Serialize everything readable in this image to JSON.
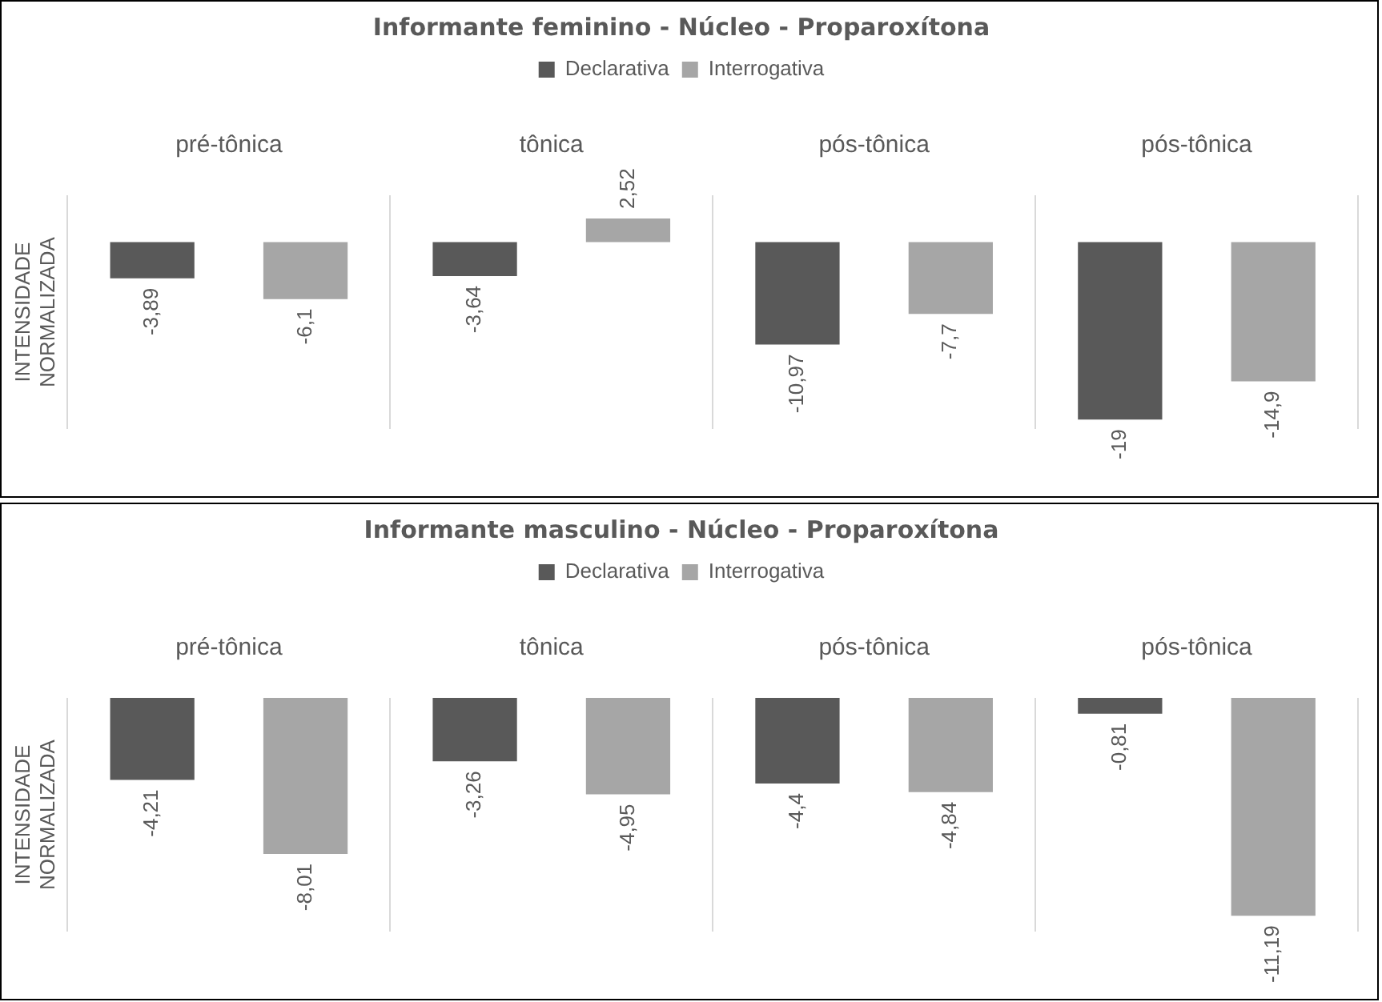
{
  "chart_data": [
    {
      "type": "bar",
      "title": "Informante feminino - Núcleo - Proparoxítona",
      "ylabel": "INTENSIDADE NORMALIZADA",
      "categories": [
        "pré-tônica",
        "tônica",
        "pós-tônica",
        "pós-tônica"
      ],
      "series": [
        {
          "name": "Declarativa",
          "color": "#595959",
          "values": [
            -3.89,
            -3.64,
            -10.97,
            -19
          ],
          "value_labels": [
            "-3,89",
            "-3,64",
            "-10,97",
            "-19"
          ]
        },
        {
          "name": "Interrogativa",
          "color": "#a6a6a6",
          "values": [
            -6.1,
            2.52,
            -7.7,
            -14.9
          ],
          "value_labels": [
            "-6,1",
            "2,52",
            "-7,7",
            "-14,9"
          ]
        }
      ],
      "legend": "top",
      "grid": "x",
      "tick_labels": "x"
    },
    {
      "type": "bar",
      "title": "Informante masculino - Núcleo - Proparoxítona",
      "ylabel": "INTENSIDADE NORMALIZADA",
      "categories": [
        "pré-tônica",
        "tônica",
        "pós-tônica",
        "pós-tônica"
      ],
      "series": [
        {
          "name": "Declarativa",
          "color": "#595959",
          "values": [
            -4.21,
            -3.26,
            -4.4,
            -0.81
          ],
          "value_labels": [
            "-4,21",
            "-3,26",
            "-4,4",
            "-0,81"
          ]
        },
        {
          "name": "Interrogativa",
          "color": "#a6a6a6",
          "values": [
            -8.01,
            -4.95,
            -4.84,
            -11.19
          ],
          "value_labels": [
            "-8,01",
            "-4,95",
            "-4,84",
            "-11,19"
          ]
        }
      ],
      "legend": "top",
      "grid": "x",
      "tick_labels": "x"
    }
  ]
}
